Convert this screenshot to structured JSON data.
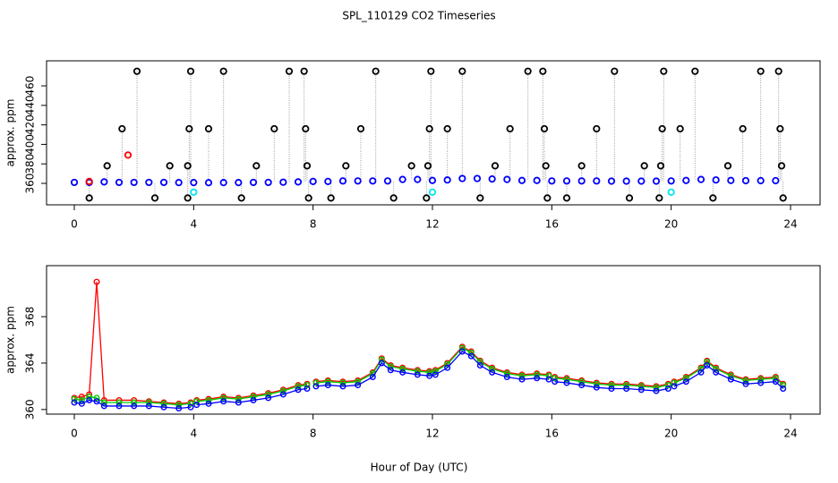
{
  "chart_data": [
    {
      "type": "scatter",
      "title": "SPL_110129  CO2 Timeseries",
      "y_label": "approx. ppm",
      "xlim": [
        -0.93,
        24.99
      ],
      "xticks": [
        0,
        4,
        8,
        12,
        16,
        20,
        24
      ],
      "ylim": [
        338,
        485.7
      ],
      "yticks": [
        360,
        380,
        400,
        420,
        440,
        460
      ],
      "series": [
        {
          "color": "#0000ff",
          "x": [
            0,
            0.5,
            1,
            1.5,
            2,
            2.5,
            3,
            3.5,
            4,
            4.5,
            5,
            5.5,
            6,
            6.5,
            7,
            7.5,
            8,
            8.5,
            9,
            9.5,
            10,
            10.5,
            11,
            11.5,
            12,
            12.5,
            13,
            13.5,
            14,
            14.5,
            15,
            15.5,
            16,
            16.5,
            17,
            17.5,
            18,
            18.5,
            19,
            19.5,
            20,
            20.5,
            21,
            21.5,
            22,
            22.5,
            23,
            23.5
          ],
          "values": [
            361,
            361,
            361.5,
            361,
            361,
            361,
            361,
            360.8,
            360.8,
            360.7,
            360.8,
            360.8,
            361,
            361,
            361.2,
            361.5,
            362,
            362,
            362.5,
            362.5,
            362.5,
            362.5,
            364,
            364,
            363,
            363.5,
            365,
            365,
            364.5,
            364,
            363,
            363,
            362.5,
            362.5,
            362.5,
            362.5,
            362.3,
            362.3,
            362.3,
            362.3,
            362.5,
            363,
            364,
            363.5,
            363,
            362.8,
            362.8,
            362.8
          ]
        },
        {
          "color": "#000000",
          "drop_lines": true,
          "x": [
            0.5,
            1.1,
            1.6,
            2.1,
            2.7,
            3.2,
            3.8,
            3.8,
            3.85,
            3.9,
            4.5,
            5.0,
            5.6,
            6.1,
            6.7,
            7.2,
            7.7,
            7.75,
            7.8,
            7.85,
            8.6,
            9.1,
            9.6,
            10.1,
            10.7,
            11.3,
            11.8,
            11.85,
            11.9,
            11.95,
            12.5,
            13.0,
            13.6,
            14.1,
            14.6,
            15.2,
            15.7,
            15.75,
            15.8,
            15.85,
            16.5,
            17.0,
            17.5,
            18.1,
            18.6,
            19.1,
            19.6,
            19.65,
            19.7,
            19.75,
            20.3,
            20.8,
            21.4,
            21.9,
            22.4,
            23.0,
            23.6,
            23.65,
            23.7,
            23.75
          ],
          "values": [
            345,
            378,
            416,
            475,
            345,
            378,
            345,
            378,
            416,
            475,
            416,
            475,
            345,
            378,
            416,
            475,
            475,
            416,
            378,
            345,
            345,
            378,
            416,
            475,
            345,
            378,
            345,
            378,
            416,
            475,
            416,
            475,
            345,
            378,
            416,
            475,
            475,
            416,
            378,
            345,
            345,
            378,
            416,
            475,
            345,
            378,
            345,
            378,
            416,
            475,
            416,
            475,
            345,
            378,
            416,
            475,
            475,
            416,
            378,
            345
          ]
        },
        {
          "color": "#ff0000",
          "x": [
            0.5,
            1.8
          ],
          "values": [
            362,
            389
          ]
        },
        {
          "color": "#00e5ee",
          "x": [
            4.0,
            12.0,
            20.0
          ],
          "values": [
            351,
            351,
            351
          ]
        }
      ]
    },
    {
      "type": "line",
      "y_label": "approx. ppm",
      "x_label": "Hour of Day (UTC)",
      "xlim": [
        -0.93,
        24.99
      ],
      "xticks": [
        0,
        4,
        8,
        12,
        16,
        20,
        24
      ],
      "ylim": [
        359.6,
        372.4
      ],
      "yticks": [
        360,
        364,
        368
      ],
      "x": [
        0,
        0.25,
        0.5,
        0.75,
        1,
        1.5,
        2,
        2.5,
        3,
        3.5,
        3.9,
        4,
        4.1,
        4.5,
        5,
        5.5,
        6,
        6.5,
        7,
        7.5,
        7.8,
        8,
        8.1,
        8.5,
        9,
        9.5,
        10,
        10.3,
        10.6,
        11,
        11.5,
        11.9,
        12.1,
        12.5,
        13,
        13.3,
        13.6,
        14,
        14.5,
        15,
        15.5,
        15.9,
        16,
        16.1,
        16.5,
        17,
        17.5,
        18,
        18.5,
        19,
        19.5,
        19.9,
        20,
        20.1,
        20.5,
        21,
        21.2,
        21.5,
        22,
        22.5,
        23,
        23.5,
        23.75
      ],
      "series": [
        {
          "color": "#ff0000",
          "values": [
            361.0,
            361.1,
            361.3,
            371.0,
            360.8,
            360.8,
            360.8,
            360.7,
            360.6,
            360.5,
            360.6,
            null,
            360.8,
            360.9,
            361.1,
            361.0,
            361.2,
            361.4,
            361.7,
            362.1,
            362.2,
            null,
            362.4,
            362.5,
            362.4,
            362.5,
            363.2,
            364.4,
            363.8,
            363.6,
            363.4,
            363.3,
            363.4,
            364.0,
            365.4,
            365.0,
            364.2,
            363.6,
            363.2,
            363.0,
            363.1,
            363.0,
            null,
            362.8,
            362.7,
            362.5,
            362.3,
            362.2,
            362.2,
            362.1,
            362.0,
            362.2,
            null,
            362.4,
            362.8,
            363.6,
            364.2,
            363.6,
            363.0,
            362.6,
            362.7,
            362.8,
            362.2
          ]
        },
        {
          "color": "#00cd00",
          "values": [
            360.9,
            360.8,
            361.1,
            361.0,
            360.6,
            360.6,
            360.6,
            360.6,
            360.5,
            360.4,
            360.5,
            null,
            360.7,
            360.8,
            361.0,
            360.9,
            361.1,
            361.3,
            361.6,
            362.0,
            362.1,
            null,
            362.3,
            362.4,
            362.3,
            362.4,
            363.1,
            364.3,
            363.7,
            363.5,
            363.3,
            363.2,
            363.3,
            363.9,
            365.3,
            364.9,
            364.1,
            363.5,
            363.1,
            362.9,
            363.0,
            362.9,
            null,
            362.7,
            362.6,
            362.4,
            362.2,
            362.1,
            362.1,
            362.0,
            361.9,
            362.1,
            null,
            362.3,
            362.7,
            363.5,
            364.1,
            363.5,
            362.9,
            362.5,
            362.6,
            362.7,
            362.1
          ]
        },
        {
          "color": "#0000ff",
          "values": [
            360.6,
            360.5,
            360.8,
            360.7,
            360.3,
            360.3,
            360.3,
            360.3,
            360.2,
            360.1,
            360.2,
            null,
            360.4,
            360.5,
            360.7,
            360.6,
            360.8,
            361.0,
            361.3,
            361.7,
            361.8,
            null,
            362.0,
            362.1,
            362.0,
            362.1,
            362.8,
            364.0,
            363.4,
            363.2,
            363.0,
            362.9,
            363.0,
            363.6,
            365.0,
            364.6,
            363.8,
            363.2,
            362.8,
            362.6,
            362.7,
            362.6,
            null,
            362.4,
            362.3,
            362.1,
            361.9,
            361.8,
            361.8,
            361.7,
            361.6,
            361.8,
            null,
            362.0,
            362.4,
            363.2,
            363.8,
            363.2,
            362.6,
            362.2,
            362.3,
            362.4,
            361.8
          ]
        }
      ]
    }
  ]
}
